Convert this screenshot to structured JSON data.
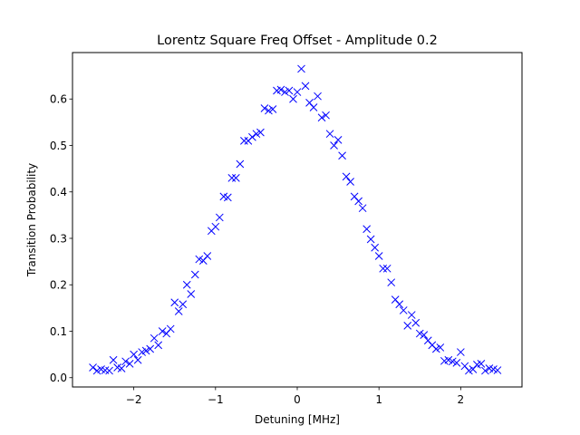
{
  "chart_data": {
    "type": "scatter",
    "title": "Lorentz Square Freq Offset - Amplitude 0.2",
    "xlabel": "Detuning [MHz]",
    "ylabel": "Transition Probability",
    "xlim": [
      -2.75,
      2.75
    ],
    "ylim": [
      -0.02,
      0.7
    ],
    "xticks": [
      -2,
      -1,
      0,
      1,
      2
    ],
    "xtick_labels": [
      "−2",
      "−1",
      "0",
      "1",
      "2"
    ],
    "yticks": [
      0.0,
      0.1,
      0.2,
      0.3,
      0.4,
      0.5,
      0.6
    ],
    "ytick_labels": [
      "0.0",
      "0.1",
      "0.2",
      "0.3",
      "0.4",
      "0.5",
      "0.6"
    ],
    "marker": "x",
    "color": "#0000ff",
    "grid": false,
    "series": [
      {
        "x": [
          -2.5,
          -2.45,
          -2.4,
          -2.35,
          -2.3,
          -2.25,
          -2.2,
          -2.15,
          -2.1,
          -2.05,
          -2.0,
          -1.95,
          -1.9,
          -1.85,
          -1.8,
          -1.75,
          -1.7,
          -1.65,
          -1.6,
          -1.55,
          -1.5,
          -1.45,
          -1.4,
          -1.35,
          -1.3,
          -1.25,
          -1.2,
          -1.15,
          -1.1,
          -1.05,
          -1.0,
          -0.95,
          -0.9,
          -0.85,
          -0.8,
          -0.75,
          -0.7,
          -0.65,
          -0.6,
          -0.55,
          -0.5,
          -0.45,
          -0.4,
          -0.35,
          -0.3,
          -0.25,
          -0.2,
          -0.15,
          -0.1,
          -0.05,
          0.0,
          0.05,
          0.1,
          0.15,
          0.2,
          0.25,
          0.3,
          0.35,
          0.4,
          0.45,
          0.5,
          0.55,
          0.6,
          0.65,
          0.7,
          0.75,
          0.8,
          0.85,
          0.9,
          0.95,
          1.0,
          1.05,
          1.1,
          1.15,
          1.2,
          1.25,
          1.3,
          1.35,
          1.4,
          1.45,
          1.5,
          1.55,
          1.6,
          1.65,
          1.7,
          1.75,
          1.8,
          1.85,
          1.9,
          1.95,
          2.0,
          2.05,
          2.1,
          2.15,
          2.2,
          2.25,
          2.3,
          2.35,
          2.4,
          2.45
        ],
        "y": [
          0.022,
          0.015,
          0.018,
          0.016,
          0.015,
          0.038,
          0.022,
          0.02,
          0.035,
          0.03,
          0.05,
          0.038,
          0.055,
          0.058,
          0.062,
          0.085,
          0.07,
          0.1,
          0.095,
          0.105,
          0.162,
          0.143,
          0.158,
          0.2,
          0.18,
          0.222,
          0.255,
          0.252,
          0.262,
          0.316,
          0.325,
          0.345,
          0.39,
          0.388,
          0.43,
          0.43,
          0.46,
          0.51,
          0.51,
          0.518,
          0.525,
          0.528,
          0.58,
          0.575,
          0.578,
          0.618,
          0.62,
          0.615,
          0.618,
          0.6,
          0.615,
          0.665,
          0.628,
          0.592,
          0.582,
          0.606,
          0.56,
          0.565,
          0.525,
          0.5,
          0.512,
          0.478,
          0.433,
          0.422,
          0.39,
          0.38,
          0.365,
          0.32,
          0.298,
          0.28,
          0.262,
          0.235,
          0.235,
          0.205,
          0.168,
          0.158,
          0.145,
          0.112,
          0.135,
          0.118,
          0.095,
          0.092,
          0.08,
          0.07,
          0.062,
          0.065,
          0.036,
          0.038,
          0.035,
          0.032,
          0.055,
          0.025,
          0.015,
          0.018,
          0.028,
          0.03,
          0.015,
          0.02,
          0.018,
          0.016
        ]
      }
    ]
  }
}
